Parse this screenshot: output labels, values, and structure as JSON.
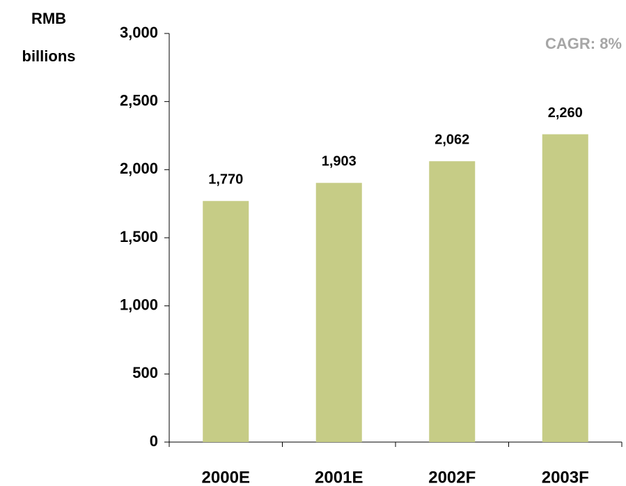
{
  "chart_data": {
    "type": "bar",
    "ylabel": [
      "RMB",
      "billions"
    ],
    "annotation": "CAGR: 8%",
    "categories": [
      "2000E",
      "2001E",
      "2002F",
      "2003F"
    ],
    "values": [
      1770,
      1903,
      2062,
      2260
    ],
    "value_labels": [
      "1,770",
      "1,903",
      "2,062",
      "2,260"
    ],
    "color": "#c6cc86",
    "ylim": [
      0,
      3000
    ],
    "yticks": [
      0,
      500,
      {
        "value": 1000,
        "label": "1,000"
      },
      {
        "value": 1500,
        "label": "1,500"
      },
      {
        "value": 2000,
        "label": "2,000"
      },
      {
        "value": 2500,
        "label": "2,500"
      },
      {
        "value": 3000,
        "label": "3,000"
      }
    ],
    "grid": false
  }
}
